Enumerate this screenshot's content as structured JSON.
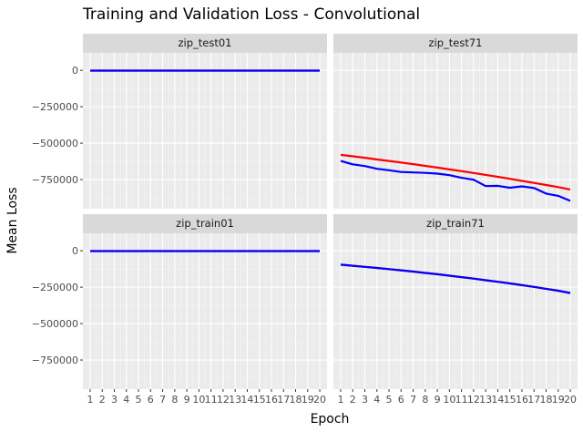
{
  "chart_data": {
    "type": "line",
    "title": "Training and Validation Loss - Convolutional",
    "xlabel": "Epoch",
    "ylabel": "Mean Loss",
    "x": [
      1,
      2,
      3,
      4,
      5,
      6,
      7,
      8,
      9,
      10,
      11,
      12,
      13,
      14,
      15,
      16,
      17,
      18,
      19,
      20
    ],
    "x_tick_labels": [
      "1",
      "2",
      "3",
      "4",
      "5",
      "6",
      "7",
      "8",
      "9",
      "10",
      "11",
      "12",
      "13",
      "14",
      "15",
      "16",
      "17",
      "18",
      "19",
      "20"
    ],
    "y_ticks": [
      0,
      -250000,
      -500000,
      -750000
    ],
    "y_tick_labels": [
      "0",
      "−250000",
      "−500000",
      "−750000"
    ],
    "ylim": [
      -950000,
      120000
    ],
    "grid": true,
    "panels": [
      {
        "title": "zip_test01",
        "series": [
          {
            "color": "#ff0000",
            "values": [
              -2000,
              -2000,
              -2000,
              -2000,
              -2000,
              -2000,
              -2000,
              -2000,
              -2000,
              -2000,
              -2000,
              -2000,
              -2000,
              -2000,
              -2000,
              -2000,
              -2000,
              -2000,
              -2000,
              -2000
            ]
          },
          {
            "color": "#0000ff",
            "values": [
              -2000,
              -2000,
              -2000,
              -2000,
              -2000,
              -2000,
              -2000,
              -2000,
              -2000,
              -2000,
              -2000,
              -2000,
              -2000,
              -2000,
              -2000,
              -2000,
              -2000,
              -2000,
              -2000,
              -2000
            ]
          }
        ]
      },
      {
        "title": "zip_test71",
        "series": [
          {
            "color": "#ff0000",
            "values": [
              -580000,
              -590000,
              -600000,
              -612000,
              -622000,
              -633000,
              -644000,
              -656000,
              -668000,
              -680000,
              -692000,
              -705000,
              -718000,
              -731000,
              -745000,
              -759000,
              -773000,
              -787000,
              -802000,
              -818000
            ]
          },
          {
            "color": "#0000ff",
            "values": [
              -622000,
              -645000,
              -657000,
              -676000,
              -686000,
              -698000,
              -701000,
              -704000,
              -709000,
              -720000,
              -738000,
              -751000,
              -795000,
              -793000,
              -806000,
              -797000,
              -808000,
              -846000,
              -862000,
              -896000
            ]
          }
        ]
      },
      {
        "title": "zip_train01",
        "series": [
          {
            "color": "#ff0000",
            "values": [
              -2000,
              -2000,
              -2000,
              -2000,
              -2000,
              -2000,
              -2000,
              -2000,
              -2000,
              -2000,
              -2000,
              -2000,
              -2000,
              -2000,
              -2000,
              -2000,
              -2000,
              -2000,
              -2000,
              -2000
            ]
          },
          {
            "color": "#0000ff",
            "values": [
              -2000,
              -2000,
              -2000,
              -2000,
              -2000,
              -2000,
              -2000,
              -2000,
              -2000,
              -2000,
              -2000,
              -2000,
              -2000,
              -2000,
              -2000,
              -2000,
              -2000,
              -2000,
              -2000,
              -2000
            ]
          }
        ]
      },
      {
        "title": "zip_train71",
        "series": [
          {
            "color": "#ff0000",
            "values": [
              -95000,
              -103000,
              -110000,
              -118000,
              -126000,
              -134000,
              -143000,
              -152000,
              -161000,
              -171000,
              -181000,
              -191000,
              -202000,
              -213000,
              -224000,
              -236000,
              -248000,
              -261000,
              -274000,
              -290000
            ]
          },
          {
            "color": "#0000ff",
            "values": [
              -95000,
              -103000,
              -110000,
              -118000,
              -126000,
              -134000,
              -143000,
              -152000,
              -161000,
              -171000,
              -181000,
              -191000,
              -202000,
              -213000,
              -224000,
              -236000,
              -248000,
              -261000,
              -274000,
              -290000
            ]
          }
        ]
      }
    ]
  }
}
